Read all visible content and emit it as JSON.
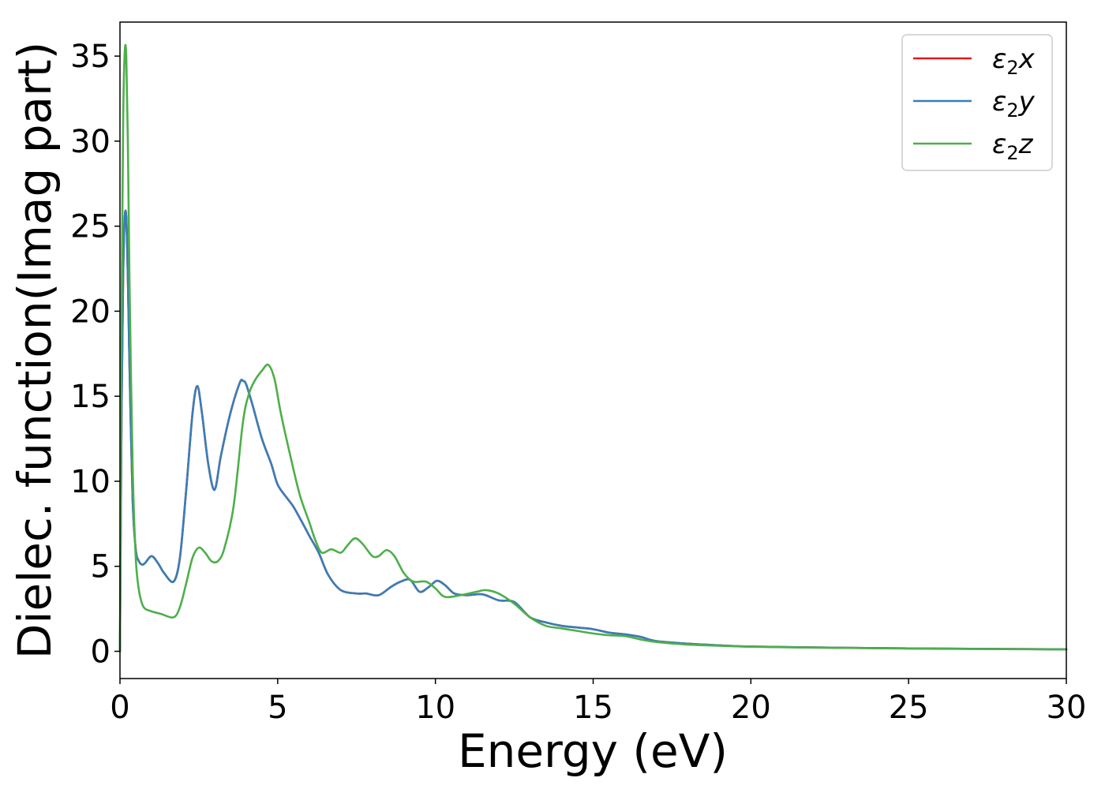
{
  "chart_data": {
    "type": "line",
    "title": "",
    "xlabel": "Energy (eV)",
    "ylabel": "Dielec. function(Imag part)",
    "xlim": [
      0,
      30
    ],
    "ylim": [
      -1.6,
      37
    ],
    "xticks": [
      0,
      5,
      10,
      15,
      20,
      25,
      30
    ],
    "yticks": [
      0,
      5,
      10,
      15,
      20,
      25,
      30,
      35
    ],
    "grid": false,
    "legend_position": "top-right",
    "series": [
      {
        "name": "ε₂x",
        "legend_base": "ε",
        "legend_sub": "2",
        "legend_suffix": "x",
        "color": "#e41a1c",
        "x": [
          0,
          0.05,
          0.1,
          0.15,
          0.2,
          0.25,
          0.3,
          0.4,
          0.5,
          0.6,
          0.7,
          0.8,
          1.0,
          1.2,
          1.4,
          1.7,
          1.9,
          2.1,
          2.3,
          2.45,
          2.6,
          2.8,
          3.0,
          3.2,
          3.5,
          3.8,
          3.9,
          4.0,
          4.2,
          4.5,
          4.8,
          5.0,
          5.3,
          5.5,
          5.8,
          6.0,
          6.3,
          6.6,
          7.0,
          7.5,
          7.8,
          8.2,
          8.6,
          8.9,
          9.2,
          9.5,
          9.8,
          10.05,
          10.3,
          10.6,
          11.0,
          11.5,
          12.0,
          12.5,
          13.0,
          13.5,
          14.0,
          14.5,
          15.0,
          15.5,
          16.0,
          16.5,
          17.0,
          18.0,
          19.0,
          20.0,
          22.0,
          24.0,
          26.0,
          28.0,
          30.0
        ],
        "values": [
          0,
          14,
          22,
          25.5,
          25.5,
          22,
          17,
          9,
          6,
          5.3,
          5.1,
          5.2,
          5.6,
          5.2,
          4.6,
          4.1,
          5.5,
          9.5,
          14.0,
          15.6,
          14.0,
          11.0,
          9.5,
          11.5,
          14.0,
          15.8,
          15.9,
          15.7,
          14.5,
          12.5,
          11.0,
          9.8,
          9.0,
          8.5,
          7.5,
          6.8,
          5.8,
          4.5,
          3.6,
          3.4,
          3.4,
          3.3,
          3.8,
          4.1,
          4.2,
          3.5,
          3.8,
          4.15,
          3.9,
          3.4,
          3.3,
          3.35,
          3.0,
          2.9,
          2.0,
          1.7,
          1.5,
          1.4,
          1.3,
          1.1,
          1.0,
          0.85,
          0.6,
          0.45,
          0.35,
          0.28,
          0.23,
          0.19,
          0.16,
          0.14,
          0.12
        ]
      },
      {
        "name": "ε₂y",
        "legend_base": "ε",
        "legend_sub": "2",
        "legend_suffix": "y",
        "color": "#377eb8",
        "x": [
          0,
          0.05,
          0.1,
          0.15,
          0.2,
          0.25,
          0.3,
          0.4,
          0.5,
          0.6,
          0.7,
          0.8,
          1.0,
          1.2,
          1.4,
          1.7,
          1.9,
          2.1,
          2.3,
          2.45,
          2.6,
          2.8,
          3.0,
          3.2,
          3.5,
          3.8,
          3.9,
          4.0,
          4.2,
          4.5,
          4.8,
          5.0,
          5.3,
          5.5,
          5.8,
          6.0,
          6.3,
          6.6,
          7.0,
          7.5,
          7.8,
          8.2,
          8.6,
          8.9,
          9.2,
          9.5,
          9.8,
          10.05,
          10.3,
          10.6,
          11.0,
          11.5,
          12.0,
          12.5,
          13.0,
          13.5,
          14.0,
          14.5,
          15.0,
          15.5,
          16.0,
          16.5,
          17.0,
          18.0,
          19.0,
          20.0,
          22.0,
          24.0,
          26.0,
          28.0,
          30.0
        ],
        "values": [
          0,
          14,
          22,
          25.5,
          25.5,
          22,
          17,
          9,
          6,
          5.3,
          5.1,
          5.2,
          5.6,
          5.2,
          4.6,
          4.1,
          5.5,
          9.5,
          14.0,
          15.6,
          14.0,
          11.0,
          9.5,
          11.5,
          14.0,
          15.8,
          15.9,
          15.7,
          14.5,
          12.5,
          11.0,
          9.8,
          9.0,
          8.5,
          7.5,
          6.8,
          5.8,
          4.5,
          3.6,
          3.4,
          3.4,
          3.3,
          3.8,
          4.1,
          4.2,
          3.5,
          3.8,
          4.15,
          3.9,
          3.4,
          3.3,
          3.35,
          3.0,
          2.9,
          2.0,
          1.7,
          1.5,
          1.4,
          1.3,
          1.1,
          1.0,
          0.85,
          0.6,
          0.45,
          0.35,
          0.28,
          0.23,
          0.19,
          0.16,
          0.14,
          0.12
        ]
      },
      {
        "name": "ε₂z",
        "legend_base": "ε",
        "legend_sub": "2",
        "legend_suffix": "z",
        "color": "#4daf4a",
        "x": [
          0,
          0.05,
          0.1,
          0.15,
          0.2,
          0.25,
          0.3,
          0.4,
          0.5,
          0.6,
          0.7,
          0.8,
          1.0,
          1.3,
          1.7,
          1.9,
          2.1,
          2.3,
          2.5,
          2.7,
          2.9,
          3.1,
          3.3,
          3.6,
          3.9,
          4.1,
          4.3,
          4.5,
          4.7,
          4.9,
          5.1,
          5.4,
          5.7,
          6.0,
          6.2,
          6.4,
          6.7,
          7.0,
          7.2,
          7.45,
          7.7,
          8.0,
          8.2,
          8.45,
          8.7,
          9.0,
          9.3,
          9.7,
          10.0,
          10.3,
          10.8,
          11.3,
          11.6,
          12.0,
          12.5,
          13.0,
          13.5,
          14.0,
          14.5,
          15.0,
          15.5,
          16.0,
          16.5,
          17.0,
          18.0,
          19.0,
          20.0,
          22.0,
          24.0,
          26.0,
          28.0,
          30.0
        ],
        "values": [
          0,
          20,
          31,
          35.2,
          35.0,
          30,
          22,
          11,
          5.5,
          3.6,
          2.8,
          2.5,
          2.35,
          2.2,
          2.0,
          2.6,
          4.0,
          5.5,
          6.1,
          5.8,
          5.3,
          5.3,
          6.0,
          8.5,
          13.5,
          15.2,
          16.0,
          16.5,
          16.85,
          16.0,
          14.0,
          11.5,
          9.2,
          7.6,
          6.5,
          5.8,
          6.0,
          5.8,
          6.2,
          6.65,
          6.3,
          5.6,
          5.6,
          5.95,
          5.6,
          4.6,
          4.1,
          4.1,
          3.7,
          3.2,
          3.3,
          3.5,
          3.6,
          3.4,
          2.8,
          2.0,
          1.5,
          1.35,
          1.2,
          1.05,
          0.95,
          0.9,
          0.7,
          0.55,
          0.4,
          0.33,
          0.27,
          0.22,
          0.18,
          0.15,
          0.13,
          0.11
        ]
      }
    ]
  }
}
